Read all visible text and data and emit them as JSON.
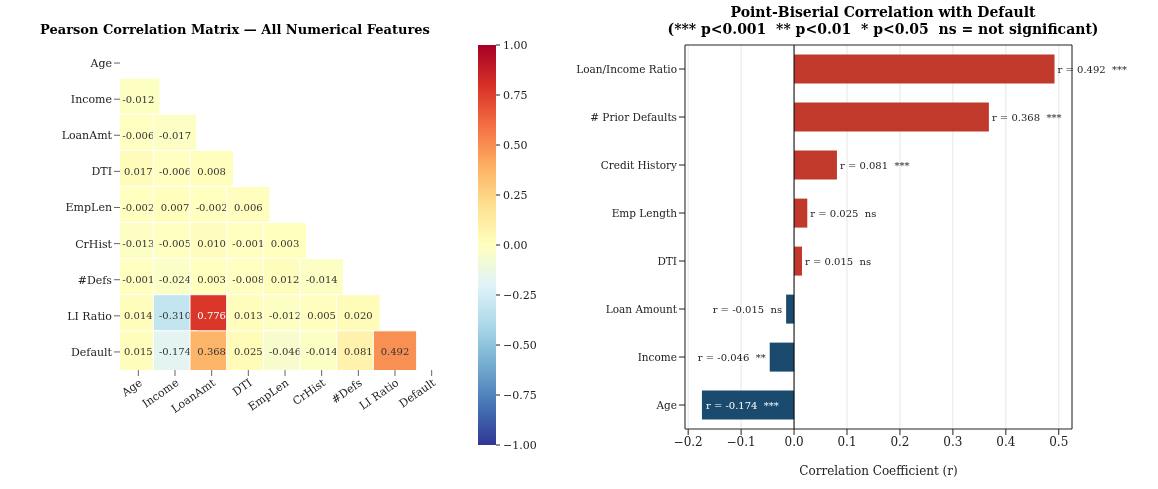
{
  "chart_data": [
    {
      "type": "heatmap",
      "title": "Pearson Correlation Matrix — All Numerical Features",
      "categories": [
        "Age",
        "Income",
        "LoanAmt",
        "DTI",
        "EmpLen",
        "CrHist",
        "#Defs",
        "LI Ratio",
        "Default"
      ],
      "y_categories": [
        "Age",
        "Income",
        "LoanAmt",
        "DTI",
        "EmpLen",
        "CrHist",
        "#Defs",
        "LI Ratio",
        "Default"
      ],
      "cells": [
        [
          null,
          null,
          null,
          null,
          null,
          null,
          null,
          null,
          null
        ],
        [
          -0.012,
          null,
          null,
          null,
          null,
          null,
          null,
          null,
          null
        ],
        [
          -0.006,
          -0.017,
          null,
          null,
          null,
          null,
          null,
          null,
          null
        ],
        [
          0.017,
          -0.006,
          0.008,
          null,
          null,
          null,
          null,
          null,
          null
        ],
        [
          -0.002,
          0.007,
          -0.002,
          0.006,
          null,
          null,
          null,
          null,
          null
        ],
        [
          -0.013,
          -0.005,
          0.01,
          -0.001,
          0.003,
          null,
          null,
          null,
          null
        ],
        [
          -0.001,
          -0.024,
          0.003,
          -0.008,
          0.012,
          -0.014,
          null,
          null,
          null
        ],
        [
          0.014,
          -0.31,
          0.776,
          0.013,
          -0.012,
          0.005,
          0.02,
          null,
          null
        ],
        [
          0.015,
          -0.174,
          0.368,
          0.025,
          -0.046,
          -0.014,
          0.081,
          0.492,
          null
        ]
      ],
      "cell_labels": [
        [
          null,
          null,
          null,
          null,
          null,
          null,
          null,
          null,
          null
        ],
        [
          "-0.012",
          null,
          null,
          null,
          null,
          null,
          null,
          null,
          null
        ],
        [
          "-0.006",
          "-0.017",
          null,
          null,
          null,
          null,
          null,
          null,
          null
        ],
        [
          "0.017",
          "-0.006",
          "0.008",
          null,
          null,
          null,
          null,
          null,
          null
        ],
        [
          "-0.002",
          "0.007",
          "-0.002",
          "0.006",
          null,
          null,
          null,
          null,
          null
        ],
        [
          "-0.013",
          "-0.005",
          "0.010",
          "-0.001",
          "0.003",
          null,
          null,
          null,
          null
        ],
        [
          "-0.001",
          "-0.024",
          "0.003",
          "-0.008",
          "0.012",
          "-0.014",
          null,
          null,
          null
        ],
        [
          "0.014",
          "-0.310",
          "0.776",
          "0.013",
          "-0.012",
          "0.005",
          "0.020",
          null,
          null
        ],
        [
          "0.015",
          "-0.174",
          "0.368",
          "0.025",
          "-0.046",
          "-0.014",
          "0.081",
          "0.492",
          null
        ]
      ],
      "clim": [
        -1,
        1
      ],
      "cticks": [
        {
          "value": -1,
          "label": "−1.00"
        },
        {
          "value": -0.75,
          "label": "−0.75"
        },
        {
          "value": -0.5,
          "label": "−0.50"
        },
        {
          "value": -0.25,
          "label": "−0.25"
        },
        {
          "value": 0,
          "label": "0.00"
        },
        {
          "value": 0.25,
          "label": "0.25"
        },
        {
          "value": 0.5,
          "label": "0.50"
        },
        {
          "value": 0.75,
          "label": "0.75"
        },
        {
          "value": 1,
          "label": "1.00"
        }
      ]
    },
    {
      "type": "bar",
      "orientation": "horizontal",
      "title": "Point-Biserial Correlation with Default",
      "subtitle": "(*** p<0.001  ** p<0.01  * p<0.05  ns = not significant)",
      "xlabel": "Correlation Coefficient (r)",
      "categories": [
        "Loan/Income Ratio",
        "# Prior Defaults",
        "Credit History",
        "Emp Length",
        "DTI",
        "Loan Amount",
        "Income",
        "Age"
      ],
      "values": [
        0.492,
        0.368,
        0.081,
        0.025,
        0.015,
        -0.015,
        -0.046,
        -0.174
      ],
      "colors": [
        "#c0392b",
        "#c0392b",
        "#c0392b",
        "#c0392b",
        "#c0392b",
        "#1a4a6e",
        "#1a4a6e",
        "#1a4a6e"
      ],
      "value_labels": [
        "r = 0.492  ***",
        "r = 0.368  ***",
        "r = 0.081  ***",
        "r = 0.025  ns",
        "r = 0.015  ns",
        "r = -0.015  ns",
        "r = -0.046  **",
        "r = -0.174  ***"
      ],
      "xlim": [
        -0.206,
        0.525
      ],
      "xticks": [
        {
          "value": -0.2,
          "label": "−0.2"
        },
        {
          "value": -0.1,
          "label": "−0.1"
        },
        {
          "value": 0,
          "label": "0.0"
        },
        0.1,
        0.2,
        0.3,
        0.4,
        0.5
      ],
      "ref_lines": [
        {
          "axis": "x",
          "value": 0,
          "color": "#000000"
        }
      ],
      "grid": "x"
    }
  ]
}
